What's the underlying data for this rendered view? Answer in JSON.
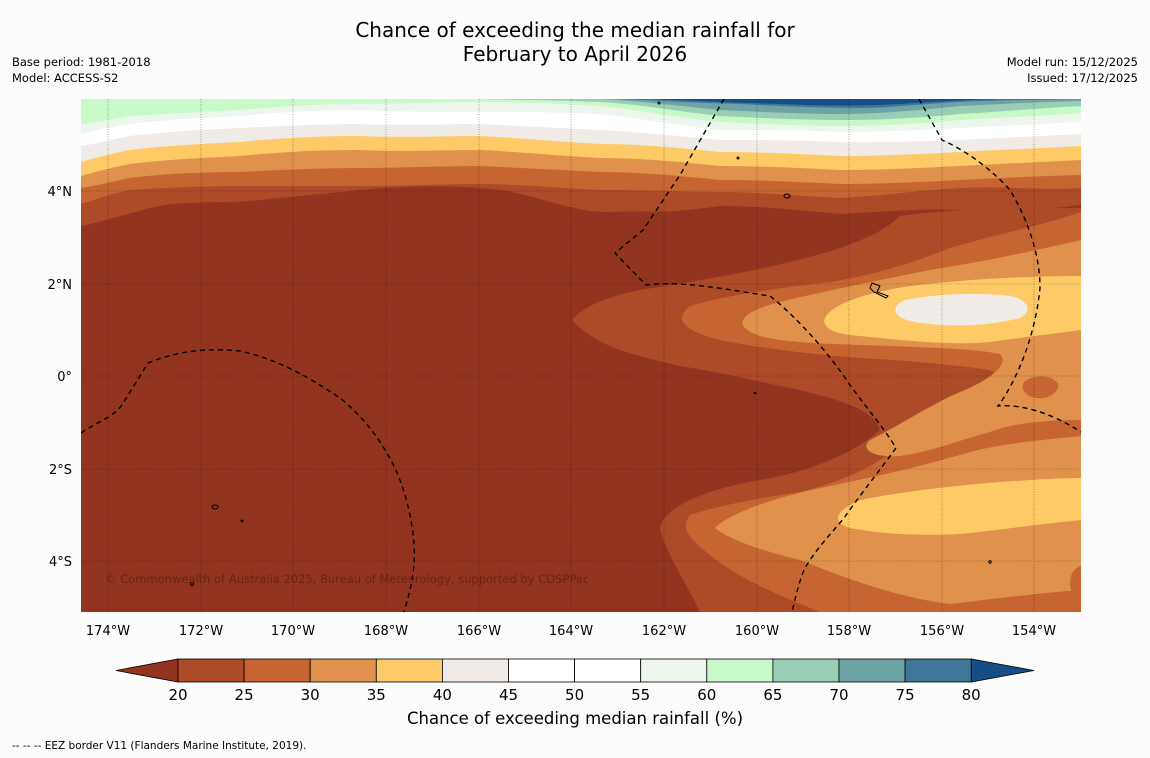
{
  "title_line1": "Chance of exceeding the median rainfall for",
  "title_line2": "February to April 2026",
  "base_period": "Base period: 1981-2018",
  "model": "Model: ACCESS-S2",
  "model_run": "Model run: 15/12/2025",
  "issued": "Issued: 17/12/2025",
  "copyright": "© Commonwealth of Australia 2025, Bureau of Meteorology, supported by COSPPac",
  "lat_ticks": [
    "4°N",
    "2°N",
    "0°",
    "2°S",
    "4°S"
  ],
  "lon_ticks": [
    "174°W",
    "172°W",
    "170°W",
    "168°W",
    "166°W",
    "164°W",
    "162°W",
    "160°W",
    "158°W",
    "156°W",
    "154°W"
  ],
  "colorbar": {
    "title": "Chance of exceeding median rainfall (%)",
    "ticks": [
      "20",
      "25",
      "30",
      "35",
      "40",
      "45",
      "50",
      "55",
      "60",
      "65",
      "70",
      "75",
      "80"
    ],
    "colors": [
      "#933421",
      "#ad4a28",
      "#c76532",
      "#e0914c",
      "#fdca67",
      "#f0ebe6",
      "#ffffff",
      "#ffffff",
      "#ecf6ec",
      "#c9f9c9",
      "#9acdb5",
      "#6ea3a6",
      "#3f7799",
      "#154d86"
    ]
  },
  "footer": "--  --  -- EEZ border V11 (Flanders Marine Institute, 2019)."
}
